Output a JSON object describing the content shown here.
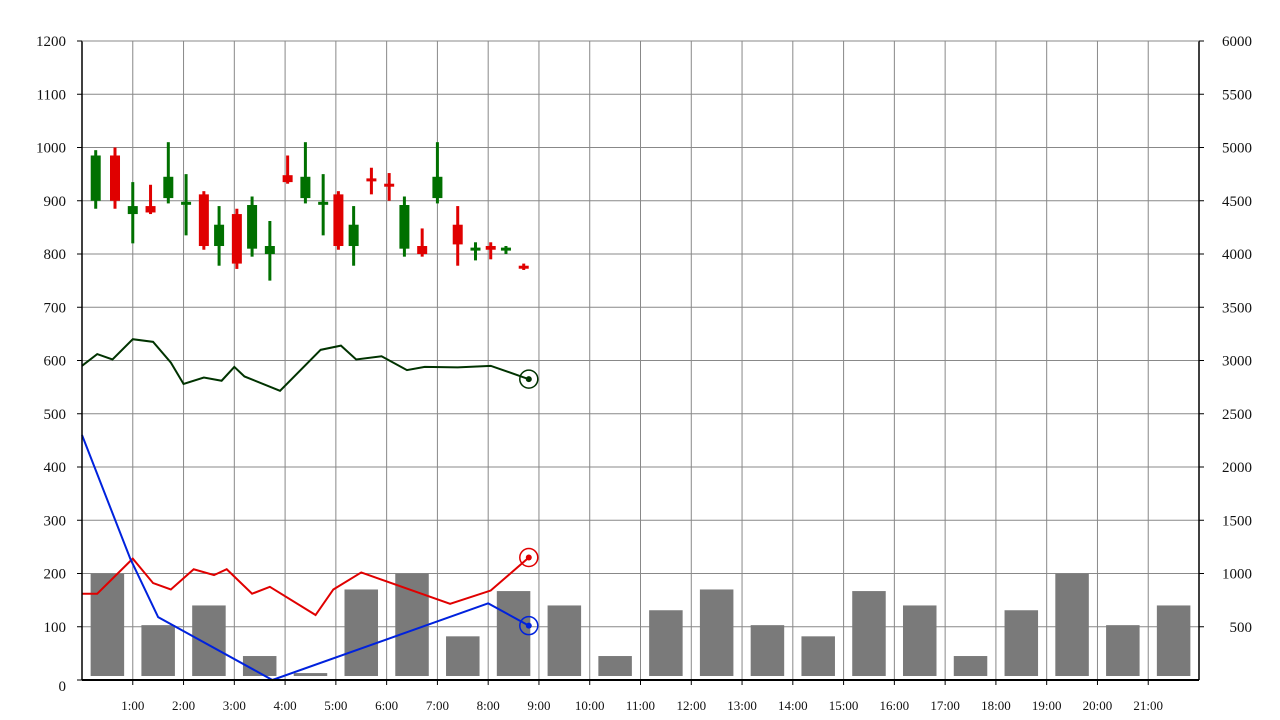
{
  "chart_data": {
    "type": "candlestick",
    "x_ticks": [
      "1:00",
      "2:00",
      "3:00",
      "4:00",
      "5:00",
      "6:00",
      "7:00",
      "8:00",
      "9:00",
      "10:00",
      "11:00",
      "12:00",
      "13:00",
      "14:00",
      "15:00",
      "16:00",
      "17:00",
      "18:00",
      "19:00",
      "20:00",
      "21:00"
    ],
    "x_range": [
      0,
      22
    ],
    "y_left": {
      "ticks": [
        "0",
        "100",
        "200",
        "300",
        "400",
        "500",
        "600",
        "700",
        "800",
        "900",
        "1000",
        "1100",
        "1200"
      ],
      "range": [
        0,
        1200
      ]
    },
    "y_right": {
      "ticks": [
        "500",
        "1000",
        "1500",
        "2000",
        "2500",
        "3000",
        "3500",
        "4000",
        "4500",
        "5000",
        "5500",
        "6000"
      ],
      "range": [
        0,
        6000
      ]
    },
    "grid": true,
    "colors": {
      "up": "#e00000",
      "down": "#007000",
      "volume": "#7a7a7a",
      "line_green": "#003300",
      "line_red": "#e00000",
      "line_blue": "#0022dd",
      "grid": "#888888"
    },
    "candles": [
      {
        "x": 0.27,
        "open": 900,
        "high": 995,
        "low": 885,
        "close": 985
      },
      {
        "x": 0.65,
        "open": 985,
        "high": 1000,
        "low": 885,
        "close": 900
      },
      {
        "x": 1.0,
        "open": 875,
        "high": 935,
        "low": 820,
        "close": 890
      },
      {
        "x": 1.35,
        "open": 890,
        "high": 930,
        "low": 875,
        "close": 878
      },
      {
        "x": 1.7,
        "open": 905,
        "high": 1010,
        "low": 895,
        "close": 945
      },
      {
        "x": 2.05,
        "open": 895,
        "high": 950,
        "low": 835,
        "close": 898
      },
      {
        "x": 2.4,
        "open": 912,
        "high": 918,
        "low": 808,
        "close": 815
      },
      {
        "x": 2.7,
        "open": 815,
        "high": 890,
        "low": 778,
        "close": 855
      },
      {
        "x": 3.05,
        "open": 875,
        "high": 885,
        "low": 772,
        "close": 782
      },
      {
        "x": 3.35,
        "open": 810,
        "high": 908,
        "low": 795,
        "close": 892
      },
      {
        "x": 3.7,
        "open": 800,
        "high": 862,
        "low": 750,
        "close": 815
      },
      {
        "x": 4.05,
        "open": 948,
        "high": 985,
        "low": 932,
        "close": 935
      },
      {
        "x": 4.4,
        "open": 905,
        "high": 1010,
        "low": 895,
        "close": 945
      },
      {
        "x": 4.75,
        "open": 895,
        "high": 950,
        "low": 835,
        "close": 898
      },
      {
        "x": 5.05,
        "open": 912,
        "high": 918,
        "low": 808,
        "close": 815
      },
      {
        "x": 5.35,
        "open": 815,
        "high": 890,
        "low": 778,
        "close": 855
      },
      {
        "x": 5.7,
        "open": 942,
        "high": 962,
        "low": 912,
        "close": 938
      },
      {
        "x": 6.05,
        "open": 932,
        "high": 952,
        "low": 900,
        "close": 928
      },
      {
        "x": 6.35,
        "open": 810,
        "high": 908,
        "low": 795,
        "close": 892
      },
      {
        "x": 6.7,
        "open": 815,
        "high": 848,
        "low": 795,
        "close": 800
      },
      {
        "x": 7.0,
        "open": 905,
        "high": 1010,
        "low": 895,
        "close": 945
      },
      {
        "x": 7.4,
        "open": 855,
        "high": 890,
        "low": 778,
        "close": 818
      },
      {
        "x": 7.75,
        "open": 808,
        "high": 822,
        "low": 788,
        "close": 812
      },
      {
        "x": 8.05,
        "open": 815,
        "high": 822,
        "low": 790,
        "close": 808
      },
      {
        "x": 8.35,
        "open": 808,
        "high": 815,
        "low": 800,
        "close": 812
      },
      {
        "x": 8.7,
        "open": 778,
        "high": 782,
        "low": 770,
        "close": 775
      }
    ],
    "series": [
      {
        "axis": "left",
        "color_key": "line_green",
        "x": [
          0,
          0.3,
          0.6,
          1.0,
          1.4,
          1.75,
          2.0,
          2.4,
          2.75,
          3.0,
          3.2,
          3.9,
          4.7,
          5.1,
          5.4,
          5.9,
          6.4,
          6.75,
          7.4,
          8.05,
          8.8
        ],
        "y": [
          590,
          612,
          602,
          640,
          635,
          596,
          556,
          568,
          562,
          588,
          570,
          543,
          620,
          628,
          602,
          608,
          582,
          588,
          587,
          590,
          565
        ]
      },
      {
        "axis": "left",
        "color_key": "line_red",
        "x": [
          0,
          0.3,
          1.0,
          1.4,
          1.75,
          2.2,
          2.6,
          2.85,
          3.35,
          3.7,
          4.6,
          4.95,
          5.5,
          7.25,
          8.05,
          8.8
        ],
        "y": [
          162,
          162,
          228,
          182,
          170,
          208,
          197,
          208,
          162,
          175,
          122,
          170,
          202,
          143,
          168,
          230
        ]
      },
      {
        "axis": "left",
        "color_key": "line_blue",
        "x": [
          0,
          0.95,
          1.5,
          3.75,
          8.0,
          8.8
        ],
        "y": [
          460,
          228,
          118,
          0,
          144,
          102
        ]
      }
    ],
    "end_markers": [
      {
        "x": 8.8,
        "y": 565,
        "color_key": "line_green"
      },
      {
        "x": 8.8,
        "y": 230,
        "color_key": "line_red"
      },
      {
        "x": 8.8,
        "y": 102,
        "color_key": "line_blue"
      }
    ],
    "volume": {
      "axis": "right",
      "bars": [
        {
          "x": 0.5,
          "value": 1000
        },
        {
          "x": 1.5,
          "value": 515
        },
        {
          "x": 2.5,
          "value": 700
        },
        {
          "x": 3.5,
          "value": 225
        },
        {
          "x": 4.5,
          "value": 65
        },
        {
          "x": 5.5,
          "value": 850
        },
        {
          "x": 6.5,
          "value": 1000
        },
        {
          "x": 7.5,
          "value": 410
        },
        {
          "x": 8.5,
          "value": 835
        },
        {
          "x": 9.5,
          "value": 700
        },
        {
          "x": 10.5,
          "value": 225
        },
        {
          "x": 11.5,
          "value": 655
        },
        {
          "x": 12.5,
          "value": 850
        },
        {
          "x": 13.5,
          "value": 515
        },
        {
          "x": 14.5,
          "value": 410
        },
        {
          "x": 15.5,
          "value": 835
        },
        {
          "x": 16.5,
          "value": 700
        },
        {
          "x": 17.5,
          "value": 225
        },
        {
          "x": 18.5,
          "value": 655
        },
        {
          "x": 19.5,
          "value": 1000
        },
        {
          "x": 20.5,
          "value": 515
        },
        {
          "x": 21.5,
          "value": 700
        }
      ]
    }
  }
}
